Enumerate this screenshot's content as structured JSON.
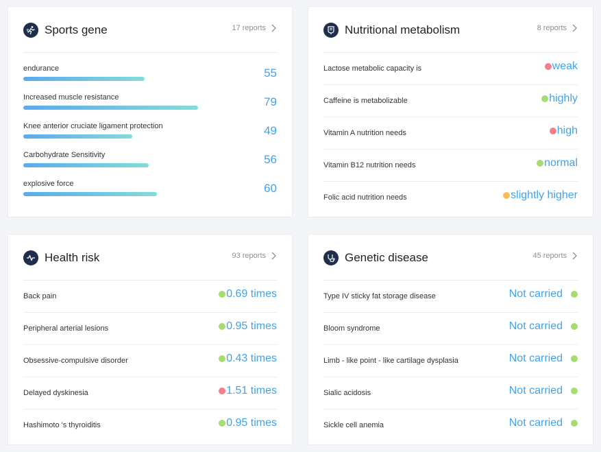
{
  "colors": {
    "green": "#a6dd70",
    "red": "#f47f8b",
    "orange": "#f9be5a",
    "accent": "#3fa3ef"
  },
  "sports": {
    "title": "Sports gene",
    "reports": "17 reports",
    "icon": "running-person-icon",
    "items": [
      {
        "label": "endurance",
        "value": "55",
        "level": 0.59
      },
      {
        "label": "Increased muscle resistance",
        "value": "79",
        "level": 0.85
      },
      {
        "label": "Knee anterior cruciate ligament protection",
        "value": "49",
        "level": 0.53
      },
      {
        "label": "Carbohydrate Sensitivity",
        "value": "56",
        "level": 0.61
      },
      {
        "label": "explosive force",
        "value": "60",
        "level": 0.65
      }
    ]
  },
  "nutrition": {
    "title": "Nutritional metabolism",
    "reports": "8 reports",
    "icon": "nutrition-icon",
    "items": [
      {
        "label": "Lactose metabolic capacity is",
        "value": "weak",
        "dot": "red"
      },
      {
        "label": "Caffeine is metabolizable",
        "value": "highly",
        "dot": "green"
      },
      {
        "label": "Vitamin A nutrition needs",
        "value": "high",
        "dot": "red"
      },
      {
        "label": "Vitamin B12 nutrition needs",
        "value": "normal",
        "dot": "green"
      },
      {
        "label": "Folic acid nutrition needs",
        "value": "slightly higher",
        "dot": "orange"
      }
    ]
  },
  "health": {
    "title": "Health risk",
    "reports": "93 reports",
    "icon": "heartbeat-icon",
    "items": [
      {
        "label": "Back pain",
        "value": "0.69 times",
        "dot": "green"
      },
      {
        "label": "Peripheral arterial lesions",
        "value": "0.95 times",
        "dot": "green"
      },
      {
        "label": "Obsessive-compulsive disorder",
        "value": "0.43 times",
        "dot": "green"
      },
      {
        "label": "Delayed dyskinesia",
        "value": "1.51 times",
        "dot": "red"
      },
      {
        "label": "Hashimoto 's thyroiditis",
        "value": "0.95 times",
        "dot": "green"
      }
    ]
  },
  "genetic": {
    "title": "Genetic disease",
    "reports": "45 reports",
    "icon": "stethoscope-icon",
    "items": [
      {
        "label": "Type IV sticky fat storage disease",
        "value": "Not carried",
        "dot": "green"
      },
      {
        "label": "Bloom syndrome",
        "value": "Not carried",
        "dot": "green"
      },
      {
        "label": "Limb - like point - like cartilage dysplasia",
        "value": "Not carried",
        "dot": "green"
      },
      {
        "label": "Sialic acidosis",
        "value": "Not carried",
        "dot": "green"
      },
      {
        "label": "Sickle cell anemia",
        "value": "Not carried",
        "dot": "green"
      }
    ]
  }
}
